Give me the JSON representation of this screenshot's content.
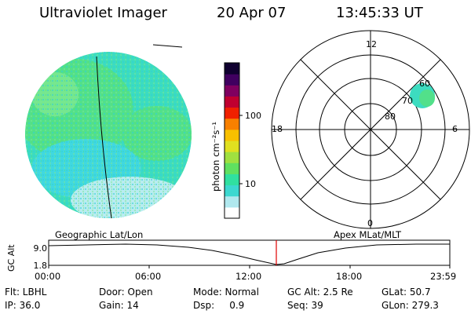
{
  "header": {
    "instrument": "Ultraviolet Imager",
    "date": "20 Apr 07",
    "time": "13:45:33 UT"
  },
  "colorbar": {
    "unit_label": "photon cm⁻²s⁻¹",
    "ticks": [
      "100",
      "10"
    ],
    "colors": [
      "#ffffff",
      "#b0e8ee",
      "#3cd8d0",
      "#30e0a0",
      "#60e060",
      "#a0e040",
      "#e0e020",
      "#f8c000",
      "#f88000",
      "#f02000",
      "#c00030",
      "#800060",
      "#400060",
      "#100030"
    ]
  },
  "image_panel": {
    "label": "Geographic Lat/Lon",
    "disk_colors": [
      "#3cdcc0",
      "#52e08a",
      "#7ee890",
      "#40d8e0",
      "#b8ecf0"
    ]
  },
  "polar_panel": {
    "label": "Apex  MLat/MLT",
    "mlt_labels": {
      "top": "12",
      "left": "18",
      "right": "6",
      "bottom": "0"
    },
    "lat_labels": [
      "60",
      "70",
      "80"
    ]
  },
  "altitude_plot": {
    "ylabel": "GC Alt",
    "y_ticks": [
      "9.0",
      "1.8"
    ],
    "x_ticks": [
      "00:00",
      "06:00",
      "12:00",
      "18:00",
      "23:59"
    ],
    "marker_color": "#e00000"
  },
  "info": {
    "flt": "Flt: LBHL",
    "door": "Door: Open",
    "mode": "Mode: Normal",
    "gcalt": "GC Alt: 2.5 Re",
    "glat": "GLat:  50.7",
    "ip": "IP: 36.0",
    "gain": "Gain: 14",
    "dsp": "Dsp:     0.9",
    "seq": "Seq: 39",
    "glon": "GLon: 279.3"
  }
}
